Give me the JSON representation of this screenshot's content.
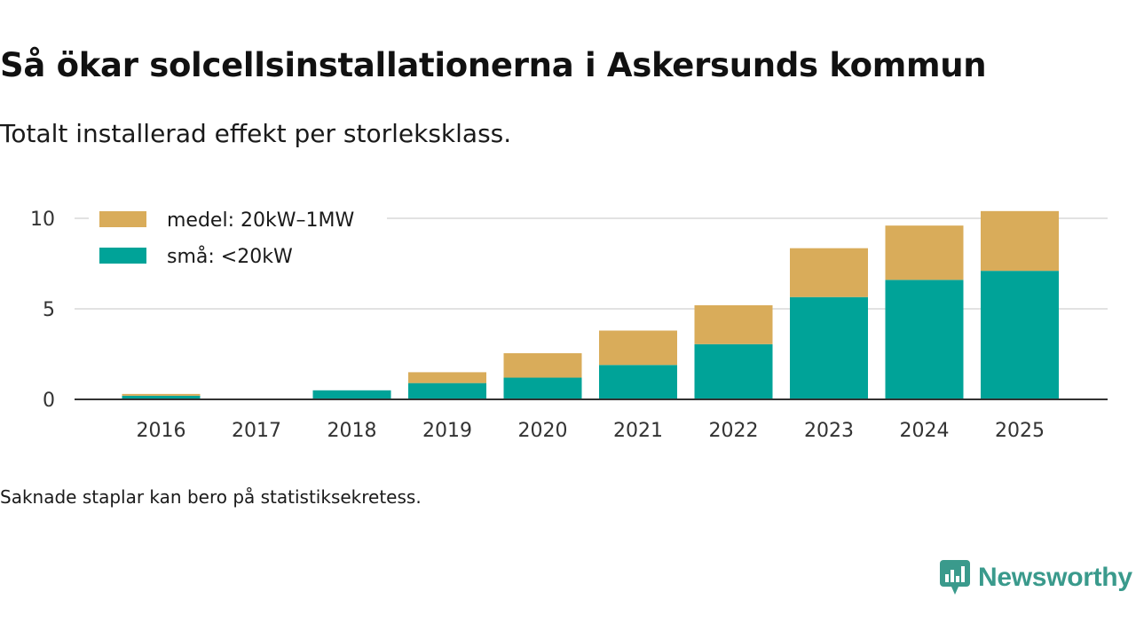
{
  "title": "Så ökar solcellsinstallationerna i Askersunds kommun",
  "subtitle": "Totalt installerad effekt per storleksklass.",
  "footnote": "Saknade staplar kan bero på statistiksekretess.",
  "brand": {
    "name": "Newsworthy",
    "color": "#3a9a8c"
  },
  "chart_data": {
    "type": "bar",
    "stacked": true,
    "categories": [
      "2016",
      "2017",
      "2018",
      "2019",
      "2020",
      "2021",
      "2022",
      "2023",
      "2024",
      "2025"
    ],
    "series": [
      {
        "name": "små: <20kW",
        "color": "#00a398",
        "values": [
          0.2,
          0,
          0.5,
          0.9,
          1.2,
          1.9,
          3.05,
          5.65,
          6.6,
          7.1
        ]
      },
      {
        "name": "medel: 20kW–1MW",
        "color": "#d9ac5a",
        "values": [
          0.1,
          0,
          0,
          0.6,
          1.35,
          1.9,
          2.15,
          2.7,
          3.0,
          3.3
        ]
      }
    ],
    "legend": [
      {
        "name": "medel: 20kW–1MW",
        "color": "#d9ac5a"
      },
      {
        "name": "små: <20kW",
        "color": "#00a398"
      }
    ],
    "ylim": [
      0,
      11
    ],
    "yticks": [
      0,
      5,
      10
    ],
    "grid": true,
    "legend_position": "top-left",
    "xlabel": "",
    "ylabel": ""
  }
}
